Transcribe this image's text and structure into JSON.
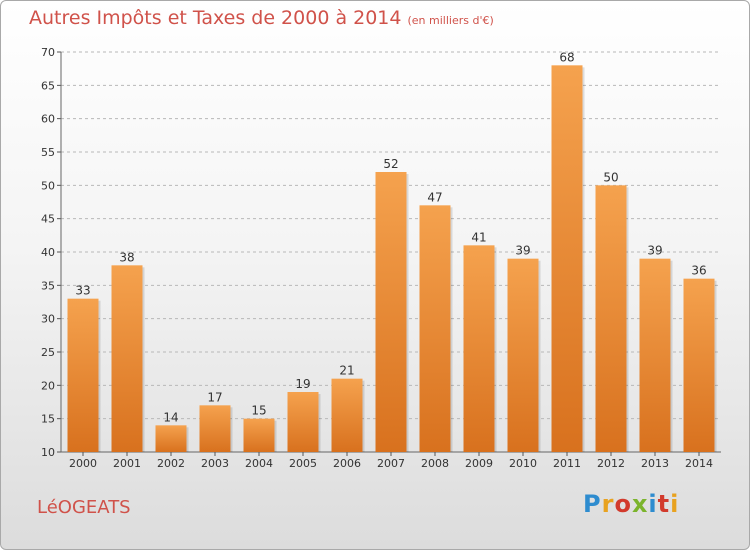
{
  "title": "Autres Impôts et Taxes de 2000 à 2014",
  "title_unit": "(en milliers d'€)",
  "commune": "LéOGEATS",
  "logo": {
    "text": "Proxiti",
    "letters": [
      "P",
      "r",
      "o",
      "x",
      "i",
      "t",
      "i"
    ]
  },
  "colors": {
    "title": "#d0524a",
    "bar_top": "#f5a24e",
    "bar_bottom": "#d8711e",
    "grid": "#b8b8b8",
    "axis_text": "#333333"
  },
  "chart_data": {
    "type": "bar",
    "title": "Autres Impôts et Taxes de 2000 à 2014",
    "subtitle": "(en milliers d'€)",
    "xlabel": "",
    "ylabel": "",
    "categories": [
      "2000",
      "2001",
      "2002",
      "2003",
      "2004",
      "2005",
      "2006",
      "2007",
      "2008",
      "2009",
      "2010",
      "2011",
      "2012",
      "2013",
      "2014"
    ],
    "values": [
      33,
      38,
      14,
      17,
      15,
      19,
      21,
      52,
      47,
      41,
      39,
      68,
      50,
      39,
      36
    ],
    "ylim": [
      10,
      70
    ],
    "yticks": [
      10,
      15,
      20,
      25,
      30,
      35,
      40,
      45,
      50,
      55,
      60,
      65,
      70
    ],
    "grid": "horizontal dashed",
    "data_labels": true
  }
}
